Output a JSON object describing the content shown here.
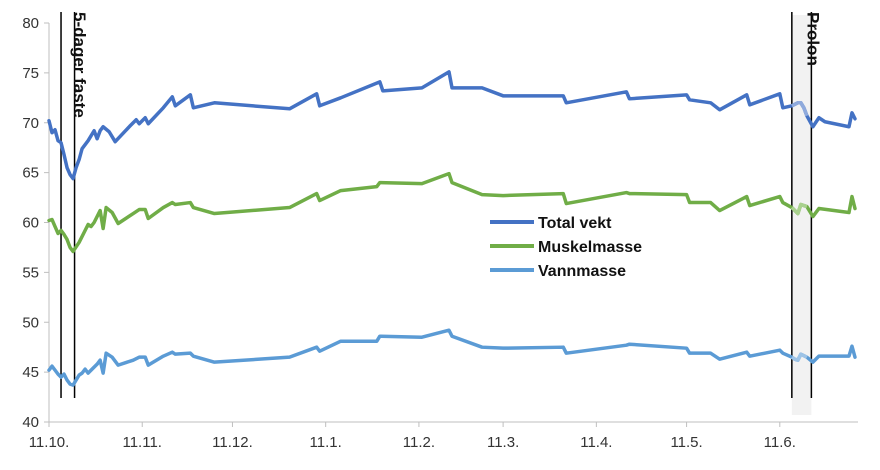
{
  "chart_data": {
    "type": "line",
    "title": "",
    "xlabel": "",
    "ylabel": "",
    "ylim": [
      40,
      80
    ],
    "yticks": [
      40,
      45,
      50,
      55,
      60,
      65,
      70,
      75,
      80
    ],
    "xticks": [
      {
        "day": 0,
        "label": "11.10."
      },
      {
        "day": 31,
        "label": "11.11."
      },
      {
        "day": 61,
        "label": "11.12."
      },
      {
        "day": 92,
        "label": "11.1."
      },
      {
        "day": 123,
        "label": "11.2."
      },
      {
        "day": 151,
        "label": "11.3."
      },
      {
        "day": 182,
        "label": "11.4."
      },
      {
        "day": 212,
        "label": "11.5."
      },
      {
        "day": 243,
        "label": "11.6."
      }
    ],
    "xlim": [
      0,
      269
    ],
    "grid": false,
    "legend": "center-right",
    "annotations": [
      {
        "text": "5-dager faste",
        "start_day": 4,
        "end_day": 8.5
      },
      {
        "text": "Prolon",
        "start_day": 247,
        "end_day": 253.5
      }
    ],
    "series": [
      {
        "name": "Total vekt",
        "color": "#4472C4",
        "highlight_color": "#8FAADC",
        "points": [
          [
            0,
            70.2
          ],
          [
            1,
            69.0
          ],
          [
            2,
            69.3
          ],
          [
            3,
            68.2
          ],
          [
            4,
            68.0
          ],
          [
            5,
            66.8
          ],
          [
            6,
            65.5
          ],
          [
            7,
            64.8
          ],
          [
            8,
            64.4
          ],
          [
            9,
            65.5
          ],
          [
            10,
            66.3
          ],
          [
            11,
            67.4
          ],
          [
            13,
            68.2
          ],
          [
            15,
            69.2
          ],
          [
            16,
            68.4
          ],
          [
            17,
            69.2
          ],
          [
            18,
            69.6
          ],
          [
            20,
            69.1
          ],
          [
            22,
            68.1
          ],
          [
            27,
            69.7
          ],
          [
            29,
            70.3
          ],
          [
            30,
            69.9
          ],
          [
            32,
            70.5
          ],
          [
            33,
            69.9
          ],
          [
            38,
            71.5
          ],
          [
            41,
            72.6
          ],
          [
            42,
            71.7
          ],
          [
            47,
            72.8
          ],
          [
            48,
            71.5
          ],
          [
            55,
            72.0
          ],
          [
            80,
            71.4
          ],
          [
            89,
            72.9
          ],
          [
            90,
            71.7
          ],
          [
            97,
            72.5
          ],
          [
            110,
            74.1
          ],
          [
            111,
            73.2
          ],
          [
            124,
            73.5
          ],
          [
            133,
            75.1
          ],
          [
            134,
            73.5
          ],
          [
            144,
            73.5
          ],
          [
            151,
            72.7
          ],
          [
            171,
            72.7
          ],
          [
            172,
            72.0
          ],
          [
            192,
            73.1
          ],
          [
            193,
            72.4
          ],
          [
            212,
            72.8
          ],
          [
            213,
            72.3
          ],
          [
            220,
            72.0
          ],
          [
            223,
            71.3
          ],
          [
            232,
            72.8
          ],
          [
            233,
            71.8
          ],
          [
            243,
            72.9
          ],
          [
            244,
            71.5
          ],
          [
            247,
            71.7
          ],
          [
            249,
            72.0
          ],
          [
            250,
            72.0
          ],
          [
            251,
            71.5
          ],
          [
            252,
            70.7
          ],
          [
            254,
            69.6
          ],
          [
            256,
            70.5
          ],
          [
            258,
            70.1
          ],
          [
            266,
            69.6
          ],
          [
            267,
            71.0
          ],
          [
            268,
            70.4
          ]
        ]
      },
      {
        "name": "Muskelmasse",
        "color": "#70AD47",
        "highlight_color": "#A9D18E",
        "points": [
          [
            0,
            60.2
          ],
          [
            1,
            60.3
          ],
          [
            3,
            58.9
          ],
          [
            4,
            59.2
          ],
          [
            5,
            58.8
          ],
          [
            6,
            58.3
          ],
          [
            7,
            57.5
          ],
          [
            8,
            57.1
          ],
          [
            10,
            58.0
          ],
          [
            12,
            59.2
          ],
          [
            13,
            59.8
          ],
          [
            14,
            59.6
          ],
          [
            15,
            60.0
          ],
          [
            17,
            61.2
          ],
          [
            18,
            59.4
          ],
          [
            19,
            61.5
          ],
          [
            21,
            61.0
          ],
          [
            23,
            59.9
          ],
          [
            28,
            60.9
          ],
          [
            30,
            61.3
          ],
          [
            32,
            61.3
          ],
          [
            33,
            60.4
          ],
          [
            38,
            61.5
          ],
          [
            41,
            62.0
          ],
          [
            42,
            61.8
          ],
          [
            47,
            62.0
          ],
          [
            48,
            61.5
          ],
          [
            55,
            60.9
          ],
          [
            80,
            61.5
          ],
          [
            89,
            62.9
          ],
          [
            90,
            62.2
          ],
          [
            97,
            63.2
          ],
          [
            109,
            63.6
          ],
          [
            110,
            64.0
          ],
          [
            124,
            63.9
          ],
          [
            133,
            64.9
          ],
          [
            134,
            64.0
          ],
          [
            144,
            62.8
          ],
          [
            151,
            62.7
          ],
          [
            171,
            62.9
          ],
          [
            172,
            61.9
          ],
          [
            192,
            63.0
          ],
          [
            193,
            62.9
          ],
          [
            212,
            62.8
          ],
          [
            213,
            62.0
          ],
          [
            220,
            62.0
          ],
          [
            223,
            61.2
          ],
          [
            232,
            62.6
          ],
          [
            233,
            61.7
          ],
          [
            243,
            62.6
          ],
          [
            244,
            62.0
          ],
          [
            247,
            61.5
          ],
          [
            248,
            61.2
          ],
          [
            249,
            60.9
          ],
          [
            250,
            61.8
          ],
          [
            252,
            61.6
          ],
          [
            254,
            60.6
          ],
          [
            256,
            61.4
          ],
          [
            266,
            61.0
          ],
          [
            267,
            62.6
          ],
          [
            268,
            61.4
          ]
        ]
      },
      {
        "name": "Vannmasse",
        "color": "#5B9BD5",
        "highlight_color": "#9DC3E6",
        "points": [
          [
            0,
            45.2
          ],
          [
            1,
            45.6
          ],
          [
            2,
            45.2
          ],
          [
            3,
            44.8
          ],
          [
            4,
            44.5
          ],
          [
            5,
            44.8
          ],
          [
            6,
            44.2
          ],
          [
            7,
            43.8
          ],
          [
            8,
            43.7
          ],
          [
            9,
            44.2
          ],
          [
            10,
            44.7
          ],
          [
            11,
            44.9
          ],
          [
            12,
            45.3
          ],
          [
            13,
            44.9
          ],
          [
            14,
            45.2
          ],
          [
            16,
            45.8
          ],
          [
            17,
            46.2
          ],
          [
            18,
            44.9
          ],
          [
            19,
            46.9
          ],
          [
            21,
            46.5
          ],
          [
            23,
            45.7
          ],
          [
            28,
            46.2
          ],
          [
            30,
            46.5
          ],
          [
            32,
            46.5
          ],
          [
            33,
            45.7
          ],
          [
            38,
            46.6
          ],
          [
            41,
            47.0
          ],
          [
            42,
            46.8
          ],
          [
            47,
            46.9
          ],
          [
            48,
            46.6
          ],
          [
            55,
            46.0
          ],
          [
            80,
            46.5
          ],
          [
            89,
            47.5
          ],
          [
            90,
            47.1
          ],
          [
            97,
            48.1
          ],
          [
            109,
            48.1
          ],
          [
            110,
            48.6
          ],
          [
            124,
            48.5
          ],
          [
            133,
            49.2
          ],
          [
            134,
            48.6
          ],
          [
            144,
            47.5
          ],
          [
            151,
            47.4
          ],
          [
            171,
            47.5
          ],
          [
            172,
            46.9
          ],
          [
            192,
            47.7
          ],
          [
            193,
            47.8
          ],
          [
            212,
            47.4
          ],
          [
            213,
            46.9
          ],
          [
            220,
            46.9
          ],
          [
            223,
            46.3
          ],
          [
            232,
            47.0
          ],
          [
            233,
            46.6
          ],
          [
            243,
            47.2
          ],
          [
            244,
            46.9
          ],
          [
            247,
            46.5
          ],
          [
            248,
            46.3
          ],
          [
            249,
            46.2
          ],
          [
            250,
            46.8
          ],
          [
            252,
            46.5
          ],
          [
            254,
            46.0
          ],
          [
            256,
            46.6
          ],
          [
            266,
            46.6
          ],
          [
            267,
            47.6
          ],
          [
            268,
            46.5
          ]
        ]
      }
    ]
  }
}
